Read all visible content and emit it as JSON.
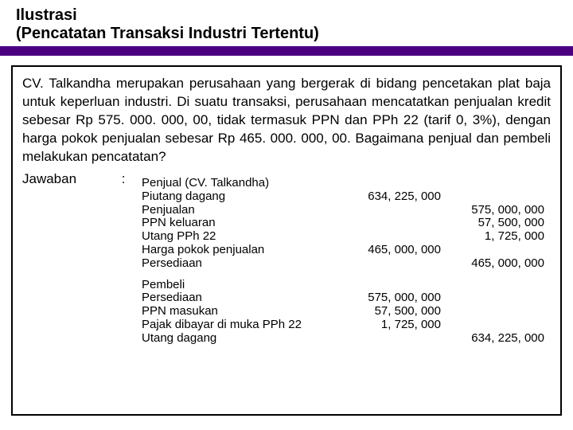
{
  "title": {
    "line1": "Ilustrasi",
    "line2": "(Pencatatan Transaksi Industri Tertentu)"
  },
  "content": {
    "body": "CV. Talkandha merupakan perusahaan yang bergerak di bidang pencetakan plat baja untuk keperluan industri. Di suatu transaksi, perusahaan mencatatkan penjualan kredit sebesar Rp 575. 000. 000, 00, tidak termasuk PPN dan PPh 22 (tarif 0, 3%), dengan harga pokok penjualan sebesar Rp 465. 000. 000, 00. Bagaimana penjual dan pembeli melakukan pencatatan?",
    "jawaban_label": "Jawaban",
    "jawaban_colon": ":"
  },
  "ledger": {
    "seller_header": "Penjual (CV. Talkandha)",
    "rows_seller1": [
      {
        "desc": "Piutang dagang",
        "debit": "634, 225, 000",
        "credit": ""
      },
      {
        "desc": "Penjualan",
        "debit": "",
        "credit": "575, 000, 000",
        "indent": true
      },
      {
        "desc": "PPN keluaran",
        "debit": "",
        "credit": "57, 500, 000",
        "indent": true
      },
      {
        "desc": "Utang PPh 22",
        "debit": "",
        "credit": "1, 725, 000",
        "indent": true
      }
    ],
    "rows_seller2": [
      {
        "desc": "Harga pokok penjualan",
        "debit": "465, 000, 000",
        "credit": ""
      },
      {
        "desc": "Persediaan",
        "debit": "",
        "credit": "465, 000, 000",
        "indent": true
      }
    ],
    "buyer_header": "Pembeli",
    "rows_buyer": [
      {
        "desc": "Persediaan",
        "debit": "575, 000, 000",
        "credit": ""
      },
      {
        "desc": "PPN masukan",
        "debit": "57, 500, 000",
        "credit": ""
      },
      {
        "desc": "Pajak dibayar di muka PPh 22",
        "debit": "1, 725, 000",
        "credit": ""
      },
      {
        "desc": "Utang dagang",
        "debit": "",
        "credit": "634, 225, 000",
        "indent": true
      }
    ]
  },
  "colors": {
    "purple": "#4b0082",
    "border": "#000000"
  }
}
